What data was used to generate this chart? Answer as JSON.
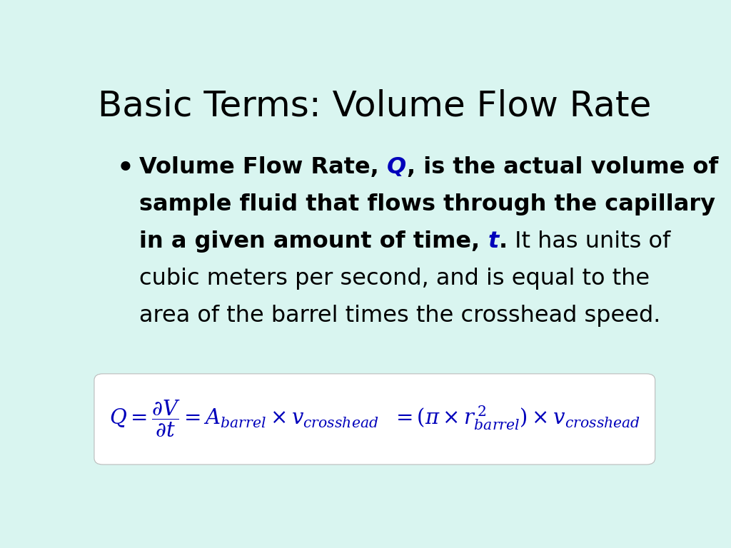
{
  "title": "Basic Terms: Volume Flow Rate",
  "title_color": "#000000",
  "title_fontsize": 36,
  "bg_color": "#d9f5f0",
  "blue_color": "#0000bb",
  "black_color": "#000000",
  "formula_color": "#0000bb",
  "formula_box_facecolor": "#ffffff",
  "bullet_fontsize": 23,
  "formula_fontsize": 21,
  "line1_bold": "Volume Flow Rate, ",
  "line1_blue_italic": "Q",
  "line1_bold2": ", is the actual volume of",
  "line2_bold": "sample fluid that flows through the capillary",
  "line3_bold": "in a given amount of time, ",
  "line3_blue_italic": "t",
  "line3_bold2": ".",
  "line3_normal": " It has units of",
  "line4_normal": "cubic meters per second, and is equal to the",
  "line5_normal": "area of the barrel times the crosshead speed."
}
